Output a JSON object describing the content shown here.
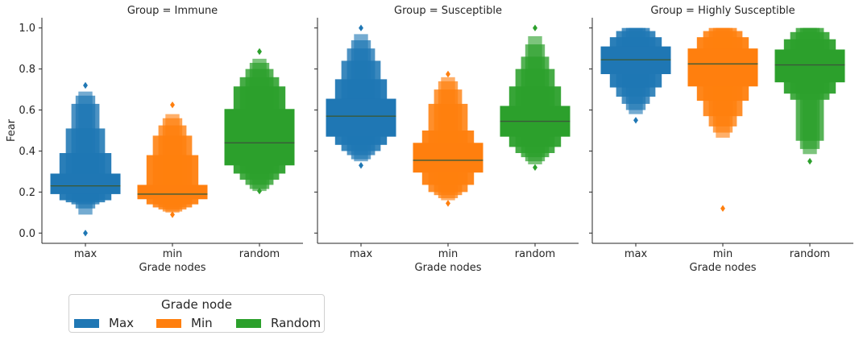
{
  "chart_data": {
    "type": "letter-value box plot (boxenplot)",
    "y_label": "Fear",
    "x_label": "Grade nodes",
    "ylim": [
      -0.05,
      1.05
    ],
    "y_ticks": [
      "0.0",
      "0.2",
      "0.4",
      "0.6",
      "0.8",
      "1.0"
    ],
    "y_tick_values": [
      0.0,
      0.2,
      0.4,
      0.6,
      0.8,
      1.0
    ],
    "categories": [
      "max",
      "min",
      "random"
    ],
    "colors": {
      "max": "#1f77b4",
      "min": "#ff7f0e",
      "random": "#2ca02c"
    },
    "median_color": "#3a5a3a",
    "panels": [
      {
        "title": "Group = Immune",
        "boxes": [
          {
            "category": "max",
            "median": 0.23,
            "levels": [
              [
                0.19,
                0.29
              ],
              [
                0.16,
                0.39
              ],
              [
                0.15,
                0.51
              ],
              [
                0.14,
                0.63
              ],
              [
                0.12,
                0.67
              ],
              [
                0.09,
                0.69
              ]
            ],
            "outliers": [
              0.0,
              0.72
            ]
          },
          {
            "category": "min",
            "median": 0.19,
            "levels": [
              [
                0.165,
                0.235
              ],
              [
                0.14,
                0.38
              ],
              [
                0.125,
                0.475
              ],
              [
                0.115,
                0.525
              ],
              [
                0.105,
                0.56
              ],
              [
                0.1,
                0.58
              ]
            ],
            "outliers": [
              0.09,
              0.625
            ]
          },
          {
            "category": "random",
            "median": 0.44,
            "levels": [
              [
                0.33,
                0.605
              ],
              [
                0.29,
                0.715
              ],
              [
                0.26,
                0.76
              ],
              [
                0.235,
                0.8
              ],
              [
                0.215,
                0.83
              ],
              [
                0.205,
                0.85
              ]
            ],
            "outliers": [
              0.205,
              0.885
            ]
          }
        ]
      },
      {
        "title": "Group = Susceptible",
        "boxes": [
          {
            "category": "max",
            "median": 0.57,
            "levels": [
              [
                0.47,
                0.655
              ],
              [
                0.43,
                0.75
              ],
              [
                0.4,
                0.84
              ],
              [
                0.38,
                0.9
              ],
              [
                0.36,
                0.94
              ],
              [
                0.35,
                0.97
              ]
            ],
            "outliers": [
              0.33,
              1.0
            ]
          },
          {
            "category": "min",
            "median": 0.355,
            "levels": [
              [
                0.295,
                0.44
              ],
              [
                0.235,
                0.5
              ],
              [
                0.2,
                0.63
              ],
              [
                0.185,
                0.7
              ],
              [
                0.17,
                0.74
              ],
              [
                0.16,
                0.76
              ]
            ],
            "outliers": [
              0.145,
              0.775
            ]
          },
          {
            "category": "random",
            "median": 0.545,
            "levels": [
              [
                0.47,
                0.62
              ],
              [
                0.42,
                0.715
              ],
              [
                0.39,
                0.8
              ],
              [
                0.37,
                0.86
              ],
              [
                0.35,
                0.92
              ],
              [
                0.335,
                0.96
              ]
            ],
            "outliers": [
              0.32,
              1.0
            ]
          }
        ]
      },
      {
        "title": "Group = Highly Susceptible",
        "boxes": [
          {
            "category": "max",
            "median": 0.845,
            "levels": [
              [
                0.775,
                0.91
              ],
              [
                0.71,
                0.955
              ],
              [
                0.665,
                0.985
              ],
              [
                0.63,
                1.0
              ],
              [
                0.6,
                1.0
              ],
              [
                0.58,
                1.0
              ]
            ],
            "outliers": [
              0.55
            ]
          },
          {
            "category": "min",
            "median": 0.825,
            "levels": [
              [
                0.715,
                0.9
              ],
              [
                0.645,
                0.955
              ],
              [
                0.57,
                0.985
              ],
              [
                0.52,
                1.0
              ],
              [
                0.49,
                1.0
              ],
              [
                0.465,
                1.0
              ]
            ],
            "outliers": [
              0.12
            ]
          },
          {
            "category": "random",
            "median": 0.82,
            "levels": [
              [
                0.735,
                0.895
              ],
              [
                0.68,
                0.945
              ],
              [
                0.65,
                0.98
              ],
              [
                0.45,
                1.0
              ],
              [
                0.41,
                1.0
              ],
              [
                0.385,
                1.0
              ]
            ],
            "outliers": [
              0.35
            ]
          }
        ]
      }
    ],
    "legend": {
      "title": "Grade node",
      "placement": "below the first panel",
      "entries": [
        {
          "label": "Max",
          "color": "#1f77b4"
        },
        {
          "label": "Min",
          "color": "#ff7f0e"
        },
        {
          "label": "Random",
          "color": "#2ca02c"
        }
      ]
    }
  }
}
